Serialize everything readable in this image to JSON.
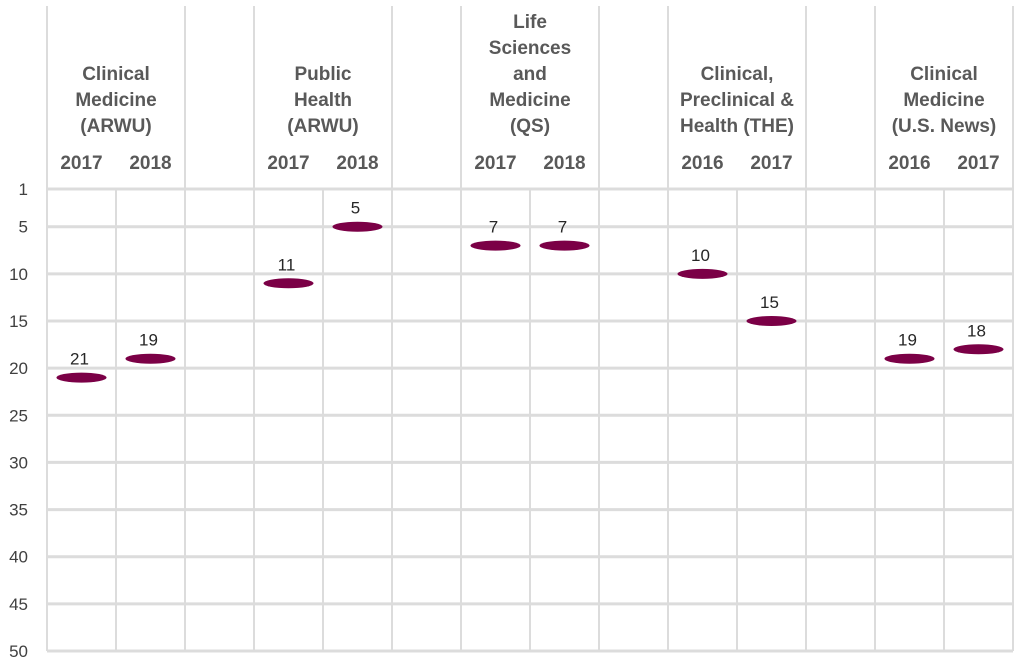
{
  "chart_data": {
    "type": "scatter",
    "y_axis": {
      "inverted": true,
      "range": [
        1,
        50
      ],
      "ticks": [
        1,
        5,
        10,
        15,
        20,
        25,
        30,
        35,
        40,
        45,
        50
      ]
    },
    "grid": true,
    "marker_color": "#7b0046",
    "groups": [
      {
        "label_lines": [
          "Clinical",
          "Medicine",
          "(ARWU)"
        ],
        "points": [
          {
            "year": "2017",
            "rank": 21
          },
          {
            "year": "2018",
            "rank": 19
          }
        ]
      },
      {
        "label_lines": [
          "Public",
          "Health",
          "(ARWU)"
        ],
        "points": [
          {
            "year": "2017",
            "rank": 11
          },
          {
            "year": "2018",
            "rank": 5
          }
        ]
      },
      {
        "label_lines": [
          "Life",
          "Sciences",
          "and",
          "Medicine",
          "(QS)"
        ],
        "points": [
          {
            "year": "2017",
            "rank": 7
          },
          {
            "year": "2018",
            "rank": 7
          }
        ]
      },
      {
        "label_lines": [
          "Clinical,",
          "Preclinical &",
          "Health (THE)"
        ],
        "points": [
          {
            "year": "2016",
            "rank": 10
          },
          {
            "year": "2017",
            "rank": 15
          }
        ]
      },
      {
        "label_lines": [
          "Clinical",
          "Medicine",
          "(U.S. News)"
        ],
        "points": [
          {
            "year": "2016",
            "rank": 19
          },
          {
            "year": "2017",
            "rank": 18
          }
        ]
      }
    ]
  }
}
